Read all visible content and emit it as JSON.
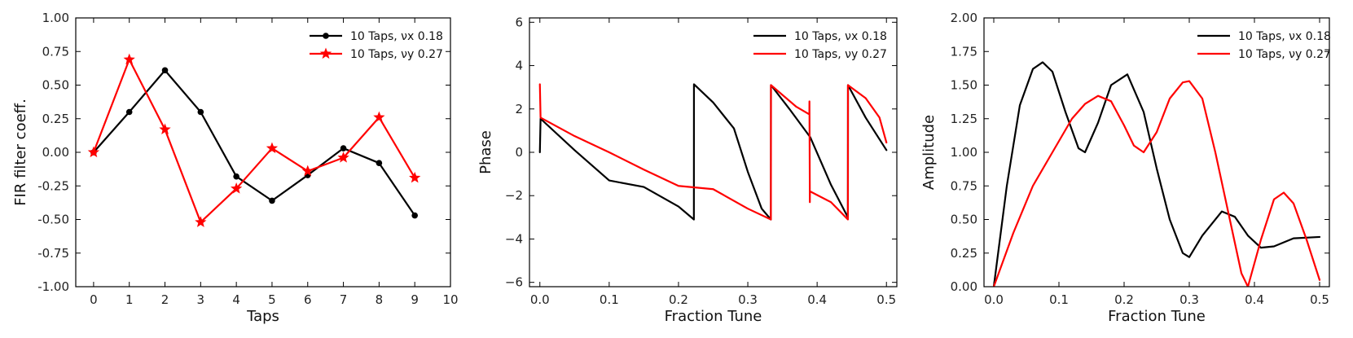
{
  "chart_data": [
    {
      "type": "line",
      "title": "",
      "xlabel": "Taps",
      "ylabel": "FIR filter coeff.",
      "xlim": [
        -0.5,
        10
      ],
      "ylim": [
        -1.0,
        1.0
      ],
      "xticks": [
        "0",
        "1",
        "2",
        "3",
        "4",
        "5",
        "6",
        "7",
        "8",
        "9",
        "10"
      ],
      "yticks": [
        "-1.00",
        "-0.75",
        "-0.50",
        "-0.25",
        "0.00",
        "0.25",
        "0.50",
        "0.75",
        "1.00"
      ],
      "legend_position": "top-right",
      "series": [
        {
          "name": "10 Taps, νx 0.18",
          "color": "#000000",
          "marker": "circle",
          "x": [
            0,
            1,
            2,
            3,
            4,
            5,
            6,
            7,
            8,
            9
          ],
          "y": [
            0.0,
            0.3,
            0.61,
            0.3,
            -0.18,
            -0.36,
            -0.17,
            0.03,
            -0.08,
            -0.47
          ]
        },
        {
          "name": "10 Taps, νy 0.27",
          "color": "#ff0000",
          "marker": "star",
          "x": [
            0,
            1,
            2,
            3,
            4,
            5,
            6,
            7,
            8,
            9
          ],
          "y": [
            0.0,
            0.69,
            0.17,
            -0.52,
            -0.27,
            0.03,
            -0.14,
            -0.04,
            0.26,
            -0.19
          ]
        }
      ]
    },
    {
      "type": "line",
      "title": "",
      "xlabel": "Fraction Tune",
      "ylabel": "Phase",
      "xlim": [
        -0.015,
        0.515
      ],
      "ylim": [
        -6.2,
        6.2
      ],
      "xticks": [
        "0.0",
        "0.1",
        "0.2",
        "0.3",
        "0.4",
        "0.5"
      ],
      "yticks": [
        "−6",
        "−4",
        "−2",
        "0",
        "2",
        "4",
        "6"
      ],
      "legend_position": "top-right",
      "series": [
        {
          "name": "10 Taps, νx 0.18",
          "color": "#000000",
          "x": [
            0.0,
            0.001,
            0.05,
            0.1,
            0.15,
            0.2,
            0.2222,
            0.2223,
            0.25,
            0.28,
            0.3,
            0.32,
            0.3333,
            0.3334,
            0.36,
            0.39,
            0.42,
            0.4444,
            0.4445,
            0.47,
            0.5
          ],
          "y": [
            0.0,
            1.55,
            0.1,
            -1.3,
            -1.6,
            -2.5,
            -3.1,
            3.14,
            2.3,
            1.1,
            -0.9,
            -2.6,
            -3.1,
            3.1,
            2.0,
            0.7,
            -1.5,
            -3.0,
            3.1,
            1.6,
            0.1
          ]
        },
        {
          "name": "10 Taps, νy 0.27",
          "color": "#ff0000",
          "x": [
            0.0,
            0.001,
            0.05,
            0.1,
            0.15,
            0.2,
            0.25,
            0.3,
            0.3333,
            0.3334,
            0.37,
            0.3888,
            0.3889,
            0.3895,
            0.3896,
            0.42,
            0.4444,
            0.4445,
            0.47,
            0.49,
            0.5
          ],
          "y": [
            3.14,
            1.6,
            0.75,
            0.0,
            -0.8,
            -1.55,
            -1.7,
            -2.6,
            -3.1,
            3.1,
            2.1,
            1.75,
            2.35,
            -2.3,
            -1.8,
            -2.3,
            -3.1,
            3.1,
            2.5,
            1.6,
            0.45
          ]
        }
      ]
    },
    {
      "type": "line",
      "title": "",
      "xlabel": "Fraction Tune",
      "ylabel": "Amplitude",
      "xlim": [
        -0.015,
        0.515
      ],
      "ylim": [
        0.0,
        2.0
      ],
      "xticks": [
        "0.0",
        "0.1",
        "0.2",
        "0.3",
        "0.4",
        "0.5"
      ],
      "yticks": [
        "0.00",
        "0.25",
        "0.50",
        "0.75",
        "1.00",
        "1.25",
        "1.50",
        "1.75",
        "2.00"
      ],
      "legend_position": "top-right",
      "series": [
        {
          "name": "10 Taps, νx 0.18",
          "color": "#000000",
          "x": [
            0.0,
            0.02,
            0.04,
            0.06,
            0.075,
            0.09,
            0.11,
            0.13,
            0.14,
            0.16,
            0.18,
            0.205,
            0.23,
            0.25,
            0.27,
            0.29,
            0.3,
            0.32,
            0.35,
            0.37,
            0.39,
            0.41,
            0.43,
            0.46,
            0.5
          ],
          "y": [
            0.0,
            0.75,
            1.35,
            1.62,
            1.67,
            1.6,
            1.3,
            1.03,
            1.0,
            1.22,
            1.5,
            1.58,
            1.3,
            0.88,
            0.5,
            0.25,
            0.22,
            0.38,
            0.56,
            0.52,
            0.38,
            0.29,
            0.3,
            0.36,
            0.37
          ]
        },
        {
          "name": "10 Taps, νy 0.27",
          "color": "#ff0000",
          "x": [
            0.0,
            0.03,
            0.06,
            0.09,
            0.12,
            0.14,
            0.16,
            0.18,
            0.2,
            0.215,
            0.23,
            0.25,
            0.27,
            0.29,
            0.3,
            0.32,
            0.34,
            0.36,
            0.38,
            0.39,
            0.41,
            0.43,
            0.445,
            0.46,
            0.48,
            0.5
          ],
          "y": [
            0.0,
            0.4,
            0.75,
            1.0,
            1.25,
            1.36,
            1.42,
            1.38,
            1.2,
            1.05,
            1.0,
            1.15,
            1.4,
            1.52,
            1.53,
            1.4,
            1.0,
            0.55,
            0.1,
            0.0,
            0.35,
            0.65,
            0.7,
            0.62,
            0.35,
            0.05
          ]
        }
      ]
    }
  ]
}
